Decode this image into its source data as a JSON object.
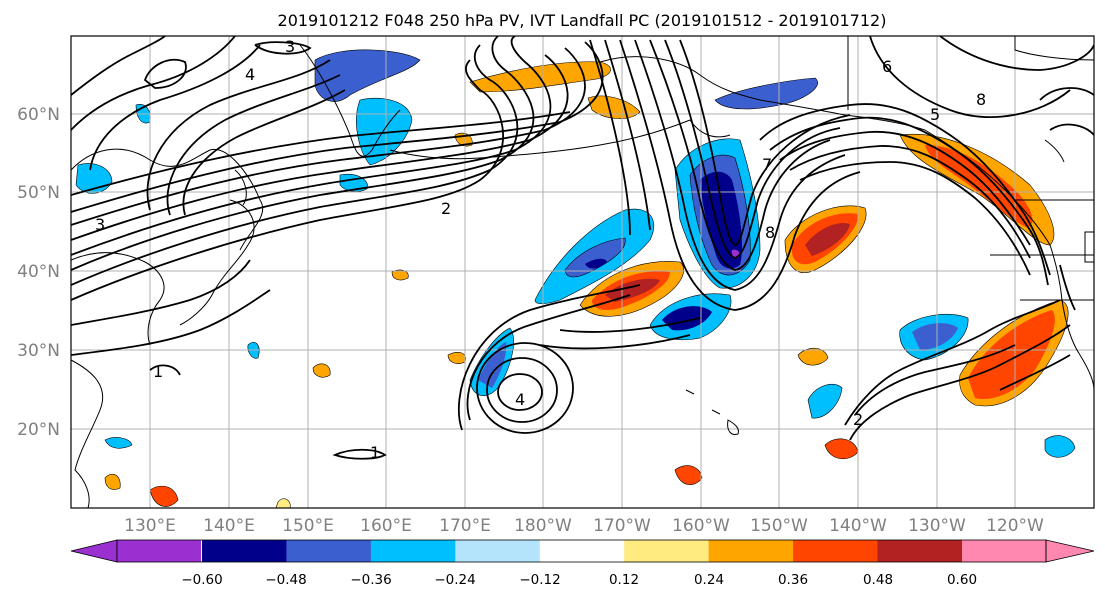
{
  "title": "2019101212 F048 250 hPa PV, IVT Landfall PC (2019101512 - 2019101712)",
  "map": {
    "lat_ticks": [
      "60°N",
      "50°N",
      "40°N",
      "30°N",
      "20°N"
    ],
    "lon_ticks": [
      "130°E",
      "140°E",
      "150°E",
      "160°E",
      "170°E",
      "180°W",
      "170°W",
      "160°W",
      "150°W",
      "140°W",
      "130°W",
      "120°W"
    ],
    "contour_labels": [
      "2",
      "3",
      "4",
      "5",
      "6",
      "7",
      "8",
      "2",
      "1",
      "1",
      "4",
      "8",
      "3"
    ]
  },
  "colorbar": {
    "ticks": [
      "−0.60",
      "−0.48",
      "−0.36",
      "−0.24",
      "−0.12",
      "0.12",
      "0.24",
      "0.36",
      "0.48",
      "0.60"
    ],
    "under_color": "#9b30d0",
    "over_color": "#ff88b0",
    "colors": [
      "#00008b",
      "#3c5fd0",
      "#00bfff",
      "#b4e4fc",
      "#ffffff",
      "#ffeb80",
      "#ffa500",
      "#ff4500",
      "#b22222"
    ]
  }
}
